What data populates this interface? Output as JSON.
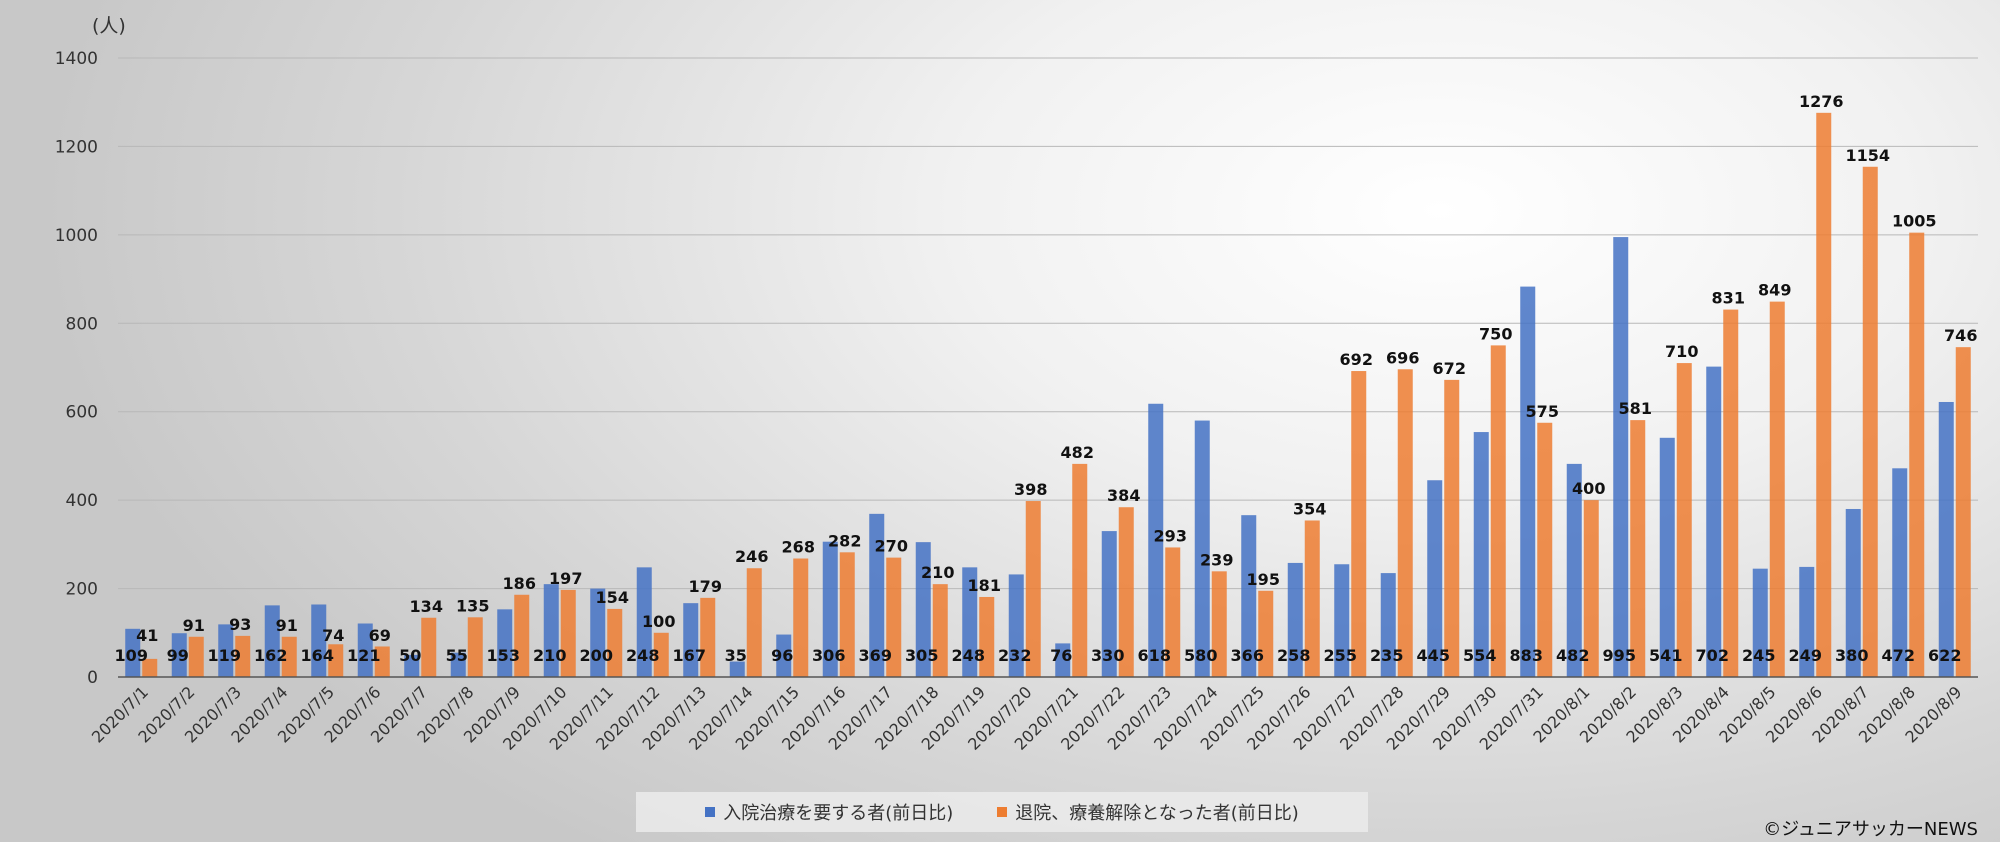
{
  "chart_data": {
    "type": "bar",
    "unit_label": "(人)",
    "ylim": [
      0,
      1400
    ],
    "yticks": [
      0,
      200,
      400,
      600,
      800,
      1000,
      1200,
      1400
    ],
    "grid": true,
    "legend_position": "bottom",
    "categories": [
      "2020/7/1",
      "2020/7/2",
      "2020/7/3",
      "2020/7/4",
      "2020/7/5",
      "2020/7/6",
      "2020/7/7",
      "2020/7/8",
      "2020/7/9",
      "2020/7/10",
      "2020/7/11",
      "2020/7/12",
      "2020/7/13",
      "2020/7/14",
      "2020/7/15",
      "2020/7/16",
      "2020/7/17",
      "2020/7/18",
      "2020/7/19",
      "2020/7/20",
      "2020/7/21",
      "2020/7/22",
      "2020/7/23",
      "2020/7/24",
      "2020/7/25",
      "2020/7/26",
      "2020/7/27",
      "2020/7/28",
      "2020/7/29",
      "2020/7/30",
      "2020/7/31",
      "2020/8/1",
      "2020/8/2",
      "2020/8/3",
      "2020/8/4",
      "2020/8/5",
      "2020/8/6",
      "2020/8/7",
      "2020/8/8",
      "2020/8/9"
    ],
    "series": [
      {
        "name": "入院治療を要する者(前日比)",
        "color": "#4472C4",
        "values": [
          109,
          99,
          119,
          162,
          164,
          121,
          50,
          55,
          153,
          210,
          200,
          248,
          167,
          35,
          96,
          306,
          369,
          305,
          248,
          232,
          76,
          330,
          618,
          580,
          366,
          258,
          255,
          235,
          445,
          554,
          883,
          482,
          995,
          541,
          702,
          245,
          249,
          380,
          472,
          622
        ]
      },
      {
        "name": "退院、療養解除となった者(前日比)",
        "color": "#ED7D31",
        "values": [
          41,
          91,
          93,
          91,
          74,
          69,
          134,
          135,
          186,
          197,
          154,
          100,
          179,
          246,
          268,
          282,
          270,
          210,
          181,
          398,
          482,
          384,
          293,
          239,
          195,
          354,
          692,
          696,
          672,
          750,
          575,
          400,
          581,
          710,
          831,
          849,
          1276,
          1154,
          1005,
          746
        ]
      }
    ]
  },
  "copyright": "©ジュニアサッカーNEWS"
}
